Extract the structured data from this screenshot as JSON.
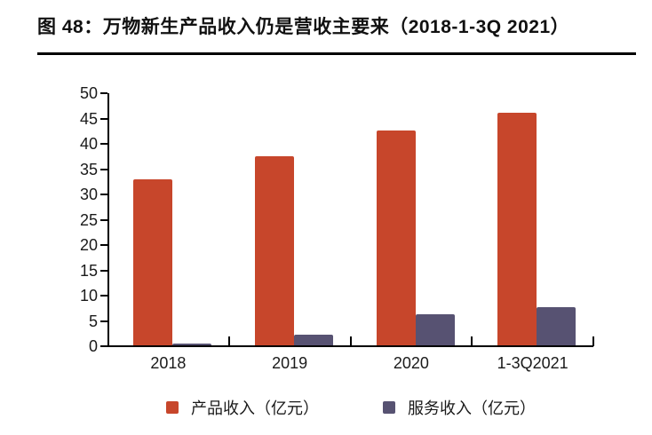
{
  "header": {
    "title": "图 48：万物新生产品收入仍是营收主要来（2018-1-3Q 2021）"
  },
  "chart_data": {
    "type": "bar",
    "title": "万物新生产品收入仍是营收主要来（2018-1-3Q 2021）",
    "categories": [
      "2018",
      "2019",
      "2020",
      "1-3Q2021"
    ],
    "series": [
      {
        "id": "product-revenue",
        "name": "产品收入（亿元）",
        "color": "#C7462B",
        "values": [
          32.9,
          37.5,
          42.6,
          46.1
        ]
      },
      {
        "id": "service-revenue",
        "name": "服务收入（亿元）",
        "color": "#575272",
        "values": [
          0.5,
          2.2,
          6.4,
          7.8
        ]
      }
    ],
    "xlabel": "",
    "ylabel": "",
    "ylim": [
      0,
      50
    ],
    "y_tick_step": 5,
    "y_tick_labels": [
      "0",
      "5",
      "10",
      "15",
      "20",
      "25",
      "30",
      "35",
      "40",
      "45",
      "50"
    ],
    "grid": false,
    "legend_position": "bottom",
    "colors": {
      "axis": "#000000",
      "text": "#1a1a1a"
    }
  }
}
